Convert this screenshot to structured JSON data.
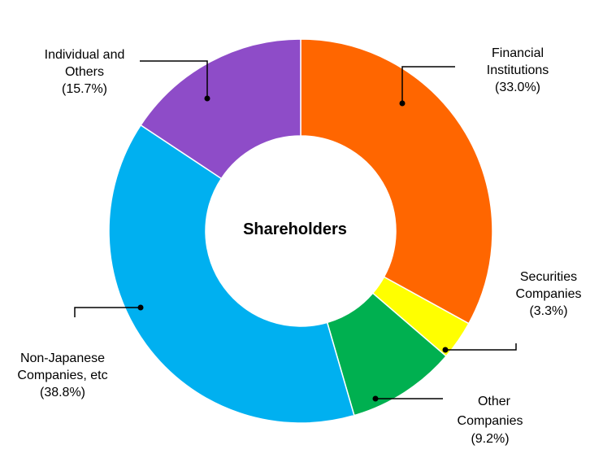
{
  "chart_data": {
    "type": "pie",
    "subtype": "donut",
    "center_title": "Shareholders",
    "slices": [
      {
        "name": "Financial Institutions",
        "label_lines": [
          "Financial",
          "Institutions"
        ],
        "percent": 33.0,
        "value_text": "(33.0%)",
        "color": "#FF6600"
      },
      {
        "name": "Securities Companies",
        "label_lines": [
          "Securities",
          "Companies"
        ],
        "percent": 3.3,
        "value_text": "(3.3%)",
        "color": "#FFFF00"
      },
      {
        "name": "Other Companies",
        "label_lines": [
          "Other",
          "Companies"
        ],
        "percent": 9.2,
        "value_text": "(9.2%)",
        "color": "#00B050"
      },
      {
        "name": "Non-Japanese Companies, etc",
        "label_lines": [
          "Non-Japanese",
          "Companies, etc"
        ],
        "percent": 38.8,
        "value_text": "(38.8%)",
        "color": "#00B0F0"
      },
      {
        "name": "Individual and Others",
        "label_lines": [
          "Individual and",
          "Others"
        ],
        "percent": 15.7,
        "value_text": "(15.7%)",
        "color": "#8E4CC8"
      }
    ],
    "legend": "none",
    "label_style": "callout-lines"
  }
}
